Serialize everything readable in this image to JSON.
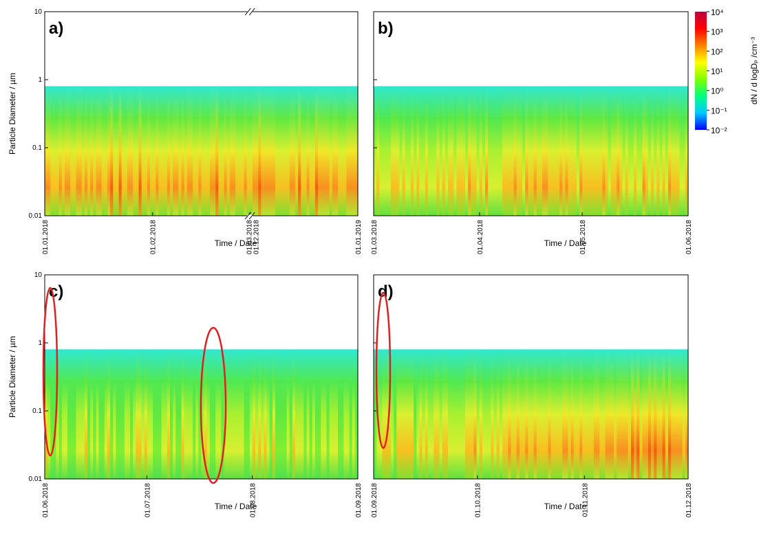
{
  "colorbar": {
    "label": "dN / d logDₚ /cm⁻³",
    "lim": [
      -2,
      4
    ],
    "ticks": [
      {
        "value": 4,
        "label": "10⁴"
      },
      {
        "value": 3,
        "label": "10³"
      },
      {
        "value": 2,
        "label": "10²"
      },
      {
        "value": 1,
        "label": "10¹"
      },
      {
        "value": 0,
        "label": "10⁰"
      },
      {
        "value": -1,
        "label": "10⁻¹"
      },
      {
        "value": -2,
        "label": "10⁻²"
      }
    ],
    "colors": [
      "#0000ff",
      "#00c8ff",
      "#00ff80",
      "#80ff00",
      "#ffff00",
      "#ff8000",
      "#ff0000",
      "#c00040"
    ]
  },
  "chart_data": [
    {
      "type": "heatmap",
      "panel_label": "a)",
      "ylabel": "Particle Diameter / µm",
      "xlabel": "Time / Date",
      "log_y": true,
      "ylim": [
        0.01,
        10
      ],
      "yticks": [
        0.01,
        0.1,
        1,
        10
      ],
      "xlim_segments": [
        [
          "01.01.2018",
          "01.03.2018"
        ],
        [
          "01.12.2018",
          "01.01.2019"
        ]
      ],
      "xticks": [
        "01.01.2018",
        "01.02.2018",
        "01.03.2018",
        "01.12.2018",
        "01.01.2019"
      ]
    },
    {
      "type": "heatmap",
      "panel_label": "b)",
      "xlabel": "Time / Date",
      "log_y": true,
      "ylim": [
        0.01,
        10
      ],
      "yticks": [
        0.01,
        0.1,
        1,
        10
      ],
      "xlim_segments": [
        [
          "01.03.2018",
          "01.06.2018"
        ]
      ],
      "xticks": [
        "01.03.2018",
        "01.04.2018",
        "01.05.2018",
        "01.06.2018"
      ]
    },
    {
      "type": "heatmap",
      "panel_label": "c)",
      "ylabel": "Particle Diameter / µm",
      "xlabel": "Time / Date",
      "log_y": true,
      "ylim": [
        0.01,
        10
      ],
      "yticks": [
        0.01,
        0.1,
        1,
        10
      ],
      "xlim_segments": [
        [
          "01.06.2018",
          "01.09.2018"
        ]
      ],
      "xticks": [
        "01.06.2018",
        "01.07.2018",
        "01.08.2018",
        "01.09.2018"
      ]
    },
    {
      "type": "heatmap",
      "panel_label": "d)",
      "xlabel": "Time / Date",
      "log_y": true,
      "ylim": [
        0.01,
        10
      ],
      "yticks": [
        0.01,
        0.1,
        1,
        10
      ],
      "xlim_segments": [
        [
          "01.09.2018",
          "01.12.2018"
        ]
      ],
      "xticks": [
        "01.09.2018",
        "01.10.2018",
        "01.11.2018",
        "01.12.2018"
      ]
    }
  ]
}
